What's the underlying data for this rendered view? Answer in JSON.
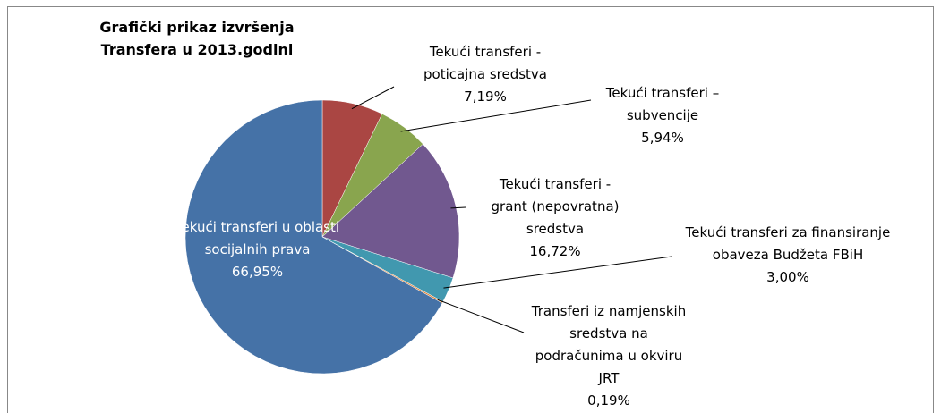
{
  "chart_data": {
    "type": "pie",
    "title": "Grafički prikaz izvršenja Transfera u 2013.godini",
    "categories": [
      "Tekući transferi - poticajna sredstva",
      "Tekući transferi – subvencije",
      "Tekući transferi - grant (nepovratna) sredstva",
      "Tekući transferi za finansiranje obaveza Budžeta FBiH",
      "Transferi iz namjenskih sredstva na podračunima u okviru JRT",
      "Tekući transferi u oblasti socijalnih prava"
    ],
    "values": [
      7.19,
      5.94,
      16.72,
      3.0,
      0.19,
      66.95
    ],
    "value_labels": [
      "7,19%",
      "5,94%",
      "16,72%",
      "3,00%",
      "0,19%",
      "66,95%"
    ],
    "colors": [
      "#aa4643",
      "#89a54e",
      "#71588f",
      "#4198af",
      "#db843d",
      "#4572a7"
    ]
  }
}
